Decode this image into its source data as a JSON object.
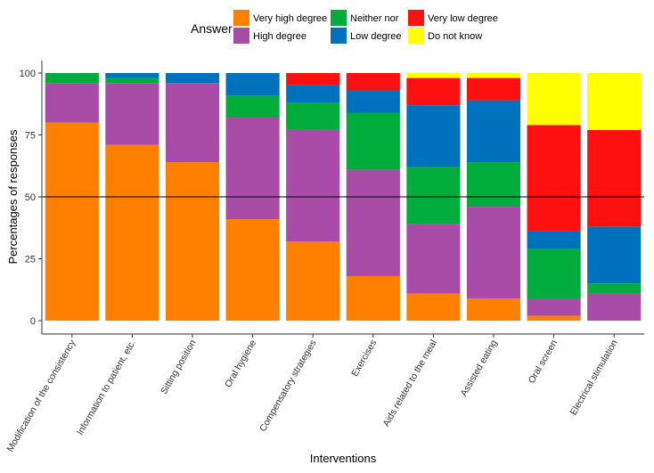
{
  "chart_data": {
    "type": "bar",
    "stacked": true,
    "title": "",
    "xlabel": "Interventions",
    "ylabel": "Percentages of responses",
    "ylim": [
      0,
      100
    ],
    "yticks": [
      0,
      25,
      50,
      75,
      100
    ],
    "reference_line": 50,
    "legend": {
      "title": "Answer",
      "position": "top"
    },
    "categories": [
      "Modification of the consistency",
      "Information to patient, etc.",
      "Sitting position",
      "Oral hygiene",
      "Compensatory strategies",
      "Exercises",
      "Aids related to the meal",
      "Assisted eating",
      "Oral screen",
      "Electrical stimulation"
    ],
    "series": [
      {
        "name": "Very high degree",
        "color": "#FF7F00",
        "values": [
          80,
          71,
          64,
          41,
          32,
          18,
          11,
          9,
          2,
          0
        ]
      },
      {
        "name": "High degree",
        "color": "#A84CA8",
        "values": [
          16,
          25,
          32,
          41,
          45,
          43,
          28,
          37,
          7,
          11
        ]
      },
      {
        "name": "Neither nor",
        "color": "#00AC3C",
        "values": [
          4,
          2,
          0,
          9,
          11,
          23,
          23,
          18,
          20,
          4
        ]
      },
      {
        "name": "Low degree",
        "color": "#0072BD",
        "values": [
          0,
          2,
          4,
          9,
          7,
          9,
          25,
          25,
          7,
          23
        ]
      },
      {
        "name": "Very low degree",
        "color": "#FF1010",
        "values": [
          0,
          0,
          0,
          0,
          5,
          7,
          11,
          9,
          43,
          39
        ]
      },
      {
        "name": "Do not know",
        "color": "#FFFF00",
        "values": [
          0,
          0,
          0,
          0,
          0,
          0,
          2,
          2,
          21,
          23
        ]
      }
    ]
  }
}
